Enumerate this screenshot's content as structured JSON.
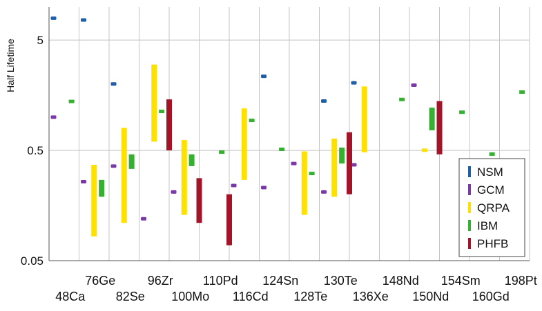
{
  "chart_data": {
    "type": "range",
    "ylabel": "Half Lifetime",
    "yscale": "log",
    "ylim": [
      0.05,
      10
    ],
    "yticks": [
      0.05,
      0.5,
      5
    ],
    "ytick_labels": [
      "0.05",
      "0.5",
      "5"
    ],
    "categories": [
      "48Ca",
      "76Ge",
      "82Se",
      "96Zr",
      "100Mo",
      "110Pd",
      "116Cd",
      "124Sn",
      "128Te",
      "130Te",
      "136Xe",
      "148Nd",
      "150Nd",
      "154Sm",
      "160Gd",
      "198Pt"
    ],
    "grid": true,
    "legend_position": "bottom-right",
    "series": [
      {
        "name": "NSM",
        "color": "#1f5fa8",
        "style": "marker",
        "points": [
          [
            0,
            7.9
          ],
          [
            1,
            7.6
          ],
          [
            2,
            2.0
          ],
          [
            7,
            2.35
          ],
          [
            9,
            1.4
          ],
          [
            10,
            2.05
          ]
        ]
      },
      {
        "name": "GCM",
        "color": "#7a3aa6",
        "style": "marker",
        "points": [
          [
            0,
            1.0
          ],
          [
            1,
            0.26
          ],
          [
            2,
            0.36
          ],
          [
            3,
            0.12
          ],
          [
            4,
            0.21
          ],
          [
            6,
            0.24
          ],
          [
            7,
            0.23
          ],
          [
            8,
            0.38
          ],
          [
            9,
            0.21
          ],
          [
            10,
            0.37
          ],
          [
            12,
            1.95
          ]
        ]
      },
      {
        "name": "QRPA",
        "color": "#ffe100",
        "style": "range",
        "ranges": [
          [
            1,
            0.083,
            0.37
          ],
          [
            2,
            0.11,
            0.8
          ],
          [
            3,
            0.6,
            3.0
          ],
          [
            4,
            0.13,
            0.62
          ],
          [
            6,
            0.27,
            1.2
          ],
          [
            8,
            0.13,
            0.49
          ],
          [
            9,
            0.19,
            0.64
          ],
          [
            10,
            0.48,
            1.9
          ],
          [
            12,
            0.5,
            0.52
          ]
        ]
      },
      {
        "name": "IBM",
        "color": "#36b030",
        "style": "range",
        "ranges": [
          [
            0,
            1.38,
            1.44
          ],
          [
            1,
            0.19,
            0.27
          ],
          [
            2,
            0.34,
            0.46
          ],
          [
            3,
            1.1,
            1.17
          ],
          [
            4,
            0.36,
            0.46
          ],
          [
            5,
            0.48,
            0.5
          ],
          [
            6,
            0.91,
            0.97
          ],
          [
            7,
            0.5,
            0.53
          ],
          [
            8,
            0.3,
            0.32
          ],
          [
            9,
            0.38,
            0.53
          ],
          [
            11,
            1.42,
            1.5
          ],
          [
            12,
            0.76,
            1.22
          ],
          [
            13,
            1.07,
            1.15
          ],
          [
            14,
            0.46,
            0.48
          ],
          [
            15,
            1.65,
            1.75
          ]
        ]
      },
      {
        "name": "PHFB",
        "color": "#a31428",
        "style": "range",
        "ranges": [
          [
            3,
            0.5,
            1.45
          ],
          [
            4,
            0.11,
            0.28
          ],
          [
            5,
            0.069,
            0.2
          ],
          [
            9,
            0.2,
            0.73
          ],
          [
            12,
            0.46,
            1.4
          ]
        ]
      }
    ]
  }
}
